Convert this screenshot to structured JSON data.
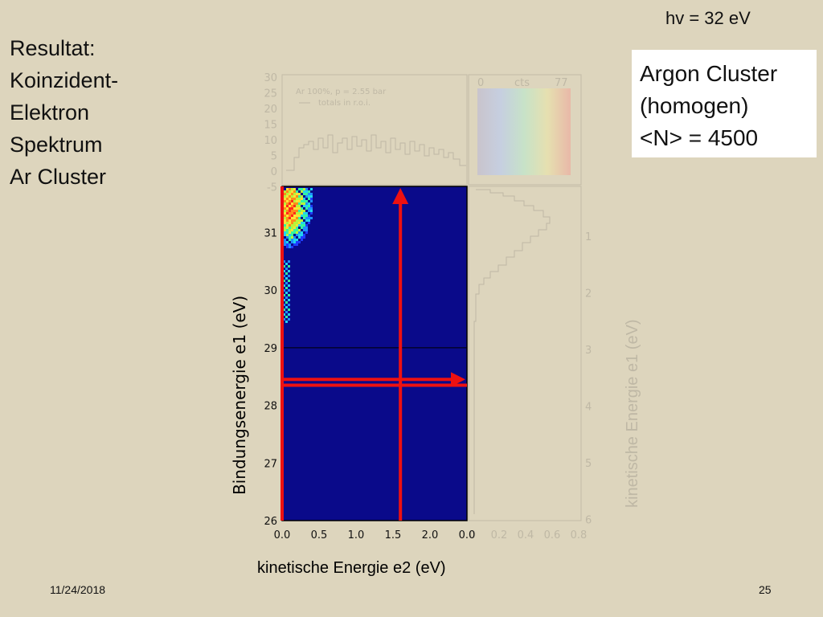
{
  "slide": {
    "title_lines": [
      "Resultat:",
      "Koinzident-",
      "Elektron",
      "Spektrum",
      "Ar Cluster"
    ],
    "photon_energy": "hv = 32 eV",
    "info_lines": [
      "Argon Cluster",
      "(homogen)",
      "<N> = 4500"
    ],
    "date": "11/24/2018",
    "page": "25"
  },
  "colors": {
    "background": "#ddd5bd",
    "plot_bg": "#0a0a8a",
    "marker": "#ee1111"
  },
  "chart_data": [
    {
      "type": "heatmap",
      "xlabel": "kinetische Energie e2 (eV)",
      "ylabel": "Bindungsenergie e1 (eV)",
      "xlim": [
        0.0,
        2.5
      ],
      "ylim": [
        26,
        31.8
      ],
      "x_ticks": [
        "0.0",
        "0.5",
        "1.0",
        "1.5",
        "2.0",
        "0.0"
      ],
      "y_ticks": [
        "26",
        "27",
        "28",
        "29",
        "30",
        "31"
      ],
      "hotspot": {
        "x": 0.1,
        "y": 31.4,
        "note": "intensity concentrated near low e2, high binding energy"
      },
      "lines": [
        {
          "kind": "vertical",
          "x": 0.0
        },
        {
          "kind": "vertical-arrow",
          "x": 1.6
        },
        {
          "kind": "horizontal-arrow",
          "y": 28.45
        },
        {
          "kind": "horizontal",
          "y": 28.35
        }
      ],
      "horizontal_divider": {
        "y": 29.0
      }
    },
    {
      "type": "line",
      "role": "top projection",
      "legend": [
        "Ar 100%, p = 2.55 bar",
        "totals in r.o.i."
      ],
      "y_ticks": [
        "30",
        "25",
        "20",
        "15",
        "10",
        "5",
        "0",
        "-5"
      ]
    },
    {
      "type": "line",
      "role": "side projection",
      "ylabel": "kinetische Energie e1 (eV)",
      "y_ticks": [
        "1",
        "2",
        "3",
        "4",
        "5",
        "6"
      ],
      "x_ticks": [
        "0",
        "0.2",
        "0.4",
        "0.6",
        "0.8"
      ]
    },
    {
      "type": "heatmap",
      "role": "color scale",
      "labels": [
        "0",
        "cts",
        "77"
      ]
    }
  ]
}
